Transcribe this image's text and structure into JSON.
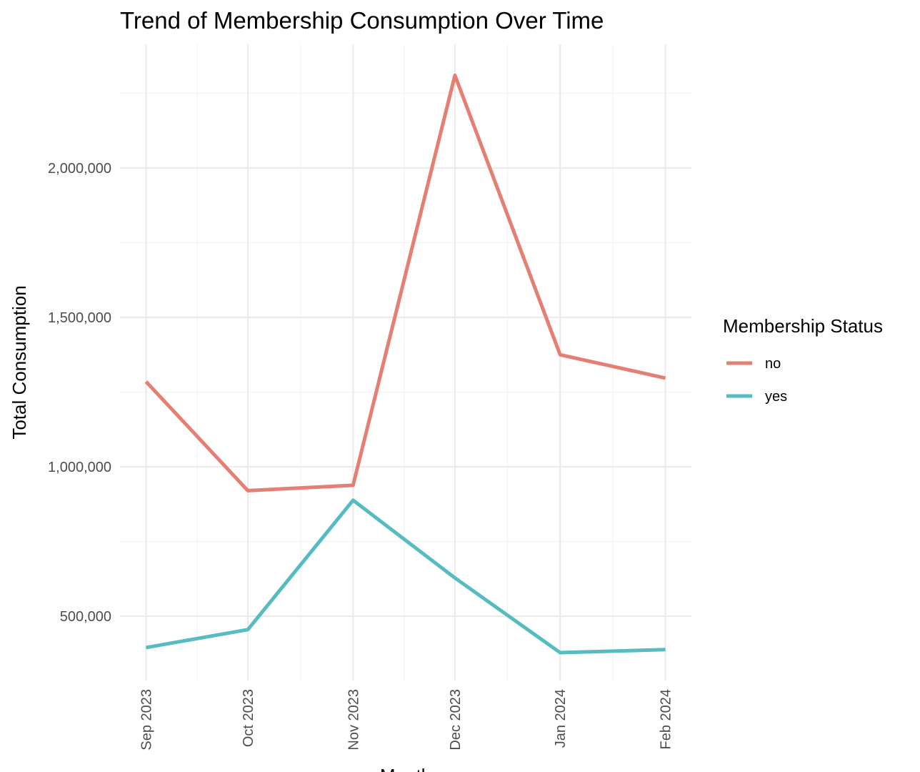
{
  "chart_data": {
    "type": "line",
    "title": "Trend of Membership Consumption Over Time",
    "xlabel": "Month",
    "ylabel": "Total Consumption",
    "categories": [
      "Sep 2023",
      "Oct 2023",
      "Nov 2023",
      "Dec 2023",
      "Jan 2024",
      "Feb 2024"
    ],
    "x_dates": [
      "2023-09-01",
      "2023-10-01",
      "2023-11-01",
      "2023-12-01",
      "2024-01-01",
      "2024-02-01"
    ],
    "y_ticks": [
      500000,
      1000000,
      1500000,
      2000000
    ],
    "y_tick_labels": [
      "500,000",
      "1,000,000",
      "1,500,000",
      "2,000,000"
    ],
    "ylim": [
      290000,
      2420000
    ],
    "grid": true,
    "legend": {
      "title": "Membership Status",
      "position": "right"
    },
    "series": [
      {
        "name": "no",
        "color": "#E67F73",
        "values": [
          1285000,
          920000,
          938000,
          2310000,
          1375000,
          1297000
        ]
      },
      {
        "name": "yes",
        "color": "#56BCC2",
        "values": [
          395000,
          455000,
          888000,
          628000,
          378000,
          388000
        ]
      }
    ]
  }
}
